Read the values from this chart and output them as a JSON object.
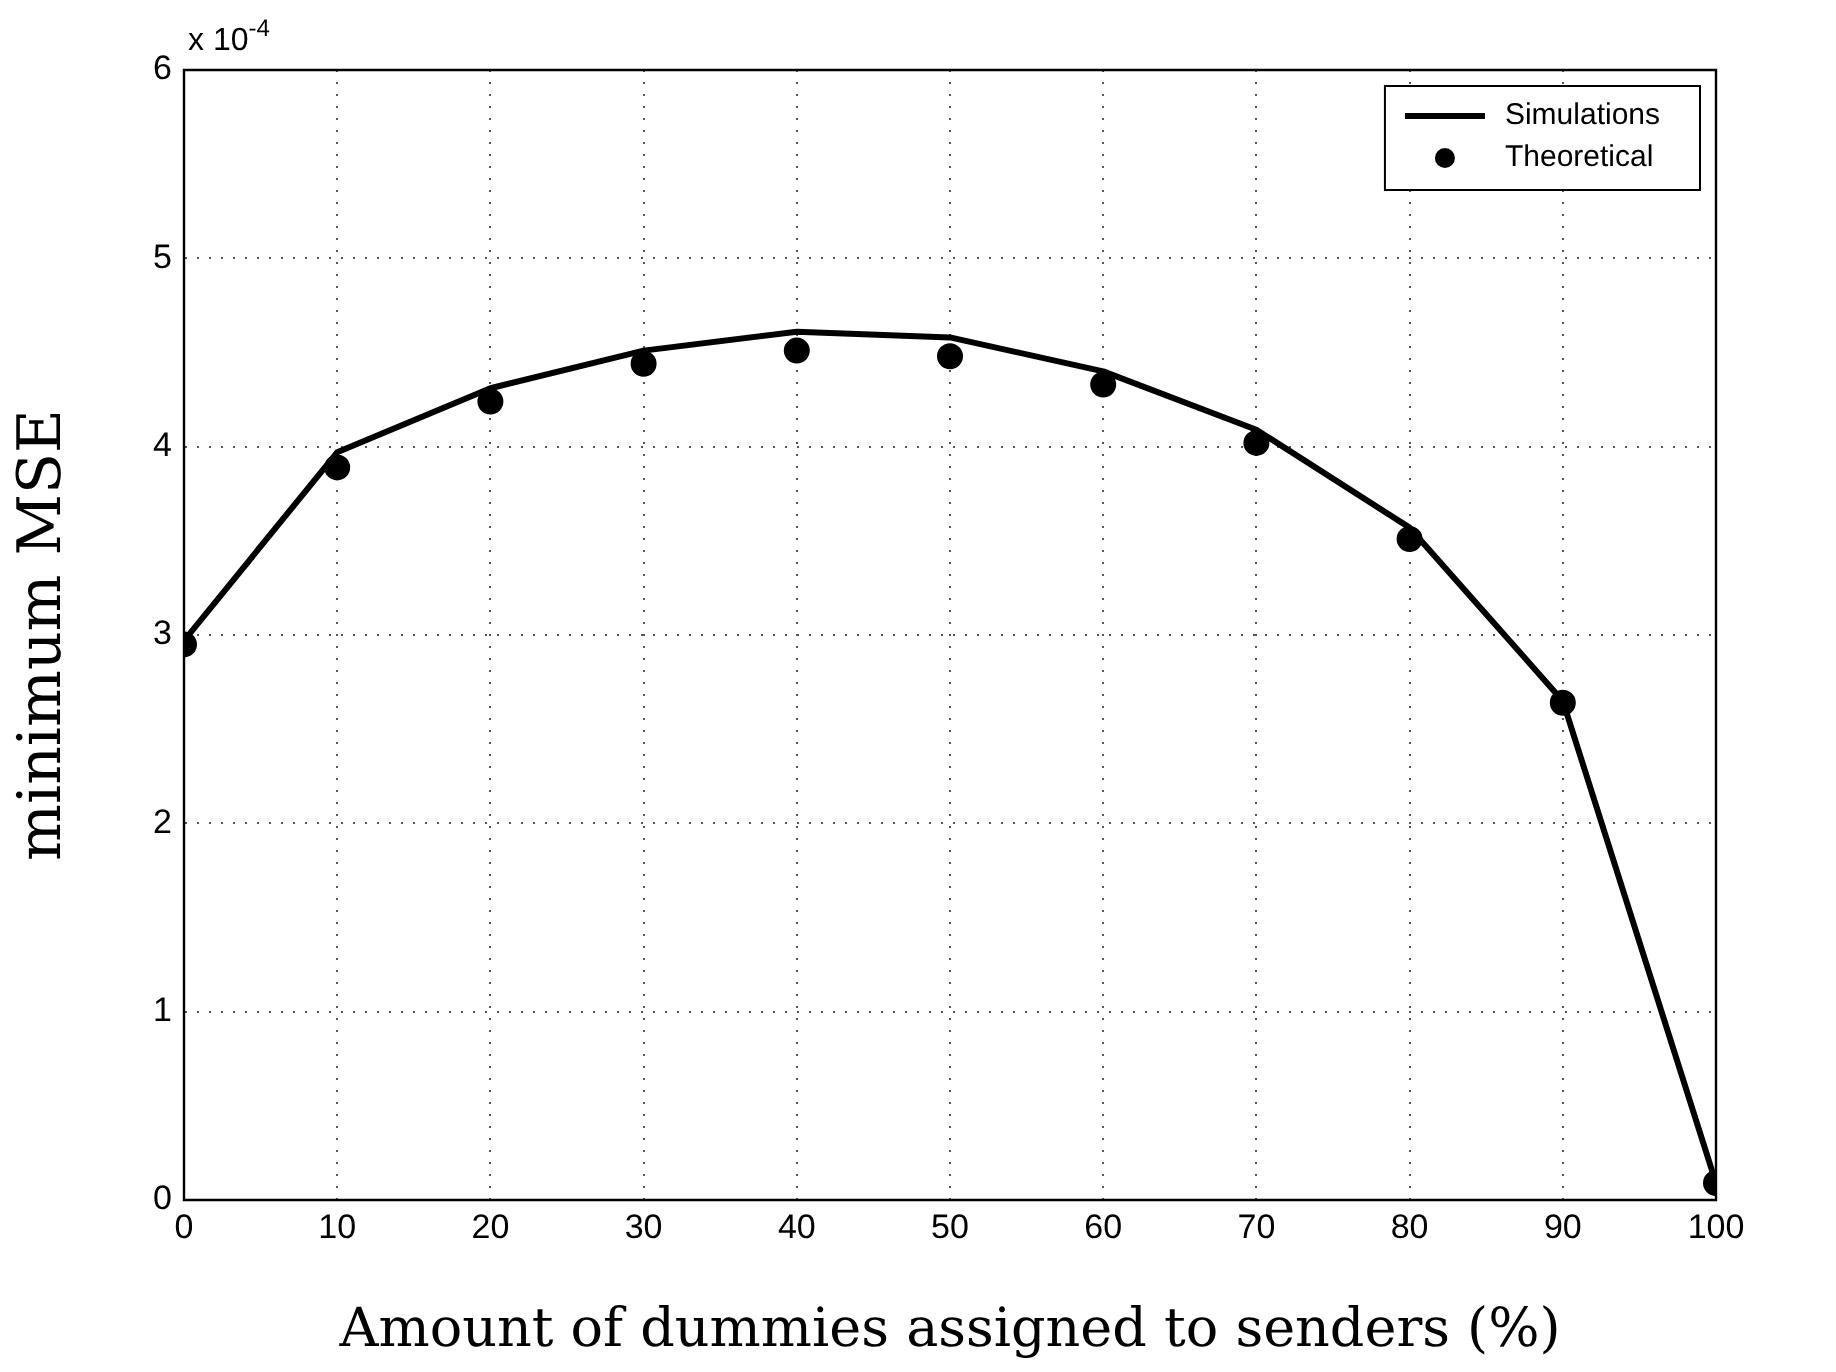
{
  "chart_data": {
    "type": "line",
    "xlabel": "Amount of dummies assigned to senders (%)",
    "ylabel": "minimum MSE",
    "annotations": [
      "x 10$^{-4}$"
    ],
    "x": [
      0,
      10,
      20,
      30,
      40,
      50,
      60,
      70,
      80,
      90,
      100
    ],
    "series": [
      {
        "name": "Simulations",
        "type": "line",
        "color": "#000000",
        "marker": "none",
        "line_style": "solid",
        "values": [
          2.97,
          3.97,
          4.31,
          4.51,
          4.61,
          4.58,
          4.4,
          4.09,
          3.57,
          2.65,
          0.09
        ]
      },
      {
        "name": "Theoretical",
        "type": "scatter",
        "color": "#000000",
        "marker": "circle",
        "values": [
          2.95,
          3.89,
          4.24,
          4.44,
          4.51,
          4.48,
          4.33,
          4.02,
          3.51,
          2.64,
          0.09
        ]
      }
    ],
    "xlim": [
      0,
      100
    ],
    "xticks": [
      0,
      10,
      20,
      30,
      40,
      50,
      60,
      70,
      80,
      90,
      100
    ],
    "ylim": [
      0,
      6
    ],
    "yticks": [
      0,
      1,
      2,
      3,
      4,
      5,
      6
    ],
    "grid": true,
    "legend": "top right"
  }
}
